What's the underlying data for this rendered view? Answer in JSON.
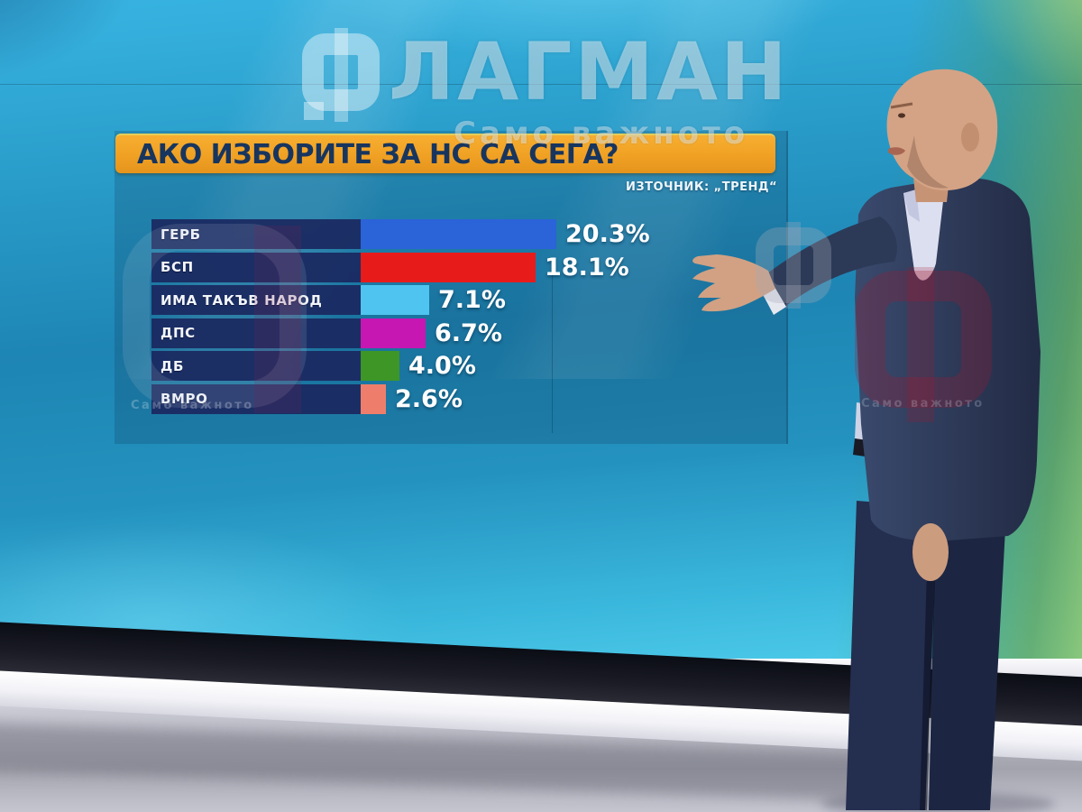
{
  "watermark": {
    "brand_rest": "ЛАГМАН",
    "brand_letter_icon": "f-logo-icon",
    "tagline": "Само важното",
    "tagline_small_left": "Само важното",
    "tagline_small_right": "Само важното"
  },
  "banner": {
    "title": "АКО ИЗБОРИТЕ ЗА НС СА СЕГА?",
    "bg_color": "#F0A124",
    "text_color": "#17355F"
  },
  "source_label": "ИЗТОЧНИК: „ТРЕНД“",
  "chart_data": {
    "type": "bar",
    "orientation": "horizontal",
    "title": "АКО ИЗБОРИТЕ ЗА НС СА СЕГА?",
    "source": "ИЗТОЧНИК: „ТРЕНД“",
    "categories": [
      "ГЕРБ",
      "БСП",
      "ИМА ТАКЪВ НАРОД",
      "ДПС",
      "ДБ",
      "ВМРО"
    ],
    "values": [
      20.3,
      18.1,
      7.1,
      6.7,
      4.0,
      2.6
    ],
    "value_labels": [
      "20.3%",
      "18.1%",
      "7.1%",
      "6.7%",
      "4.0%",
      "2.6%"
    ],
    "colors": [
      "#2B63D9",
      "#E81B1B",
      "#4FC4F0",
      "#C617B2",
      "#3E9627",
      "#EE7E6B"
    ],
    "label_box_color": "#1A2860",
    "value_text_color": "#FFFFFF",
    "xlim": [
      0,
      25
    ],
    "grid": false,
    "legend": false
  }
}
